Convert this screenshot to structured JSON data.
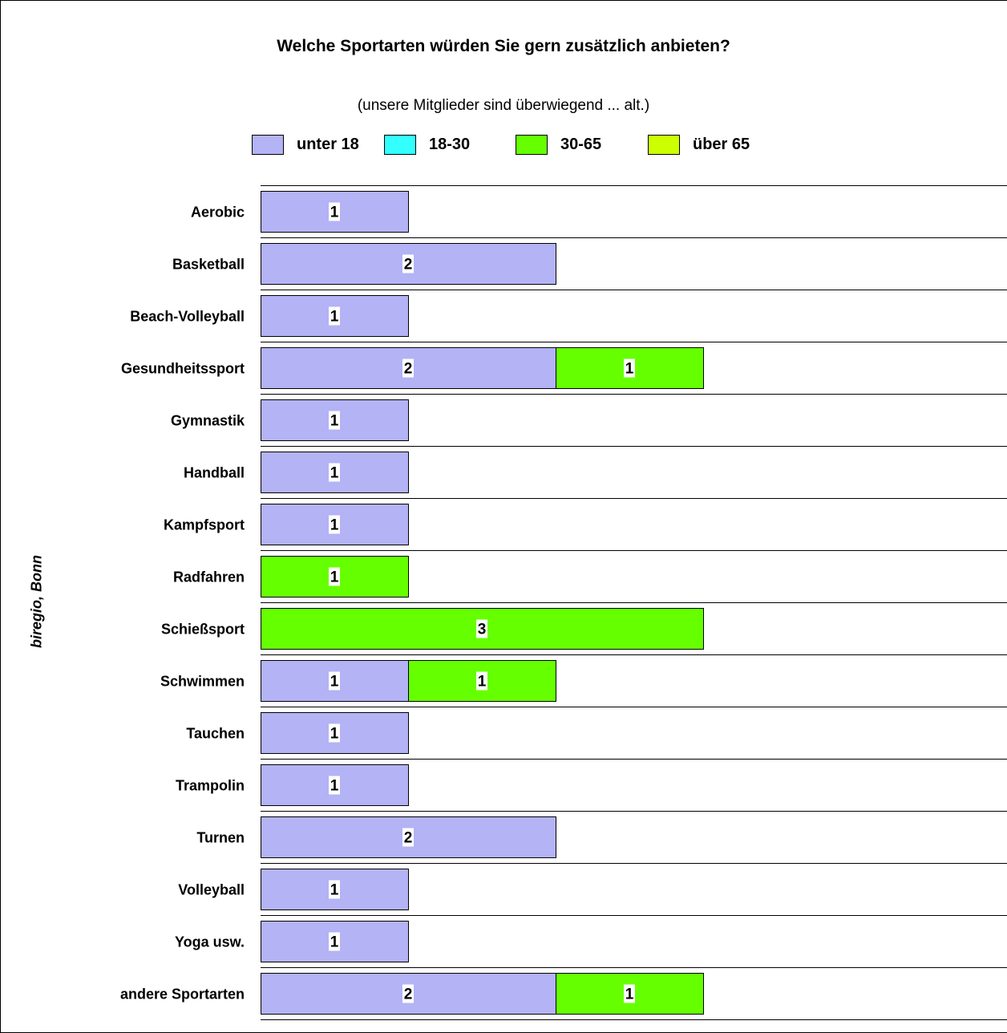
{
  "chart_data": {
    "type": "bar",
    "orientation": "horizontal",
    "stacked": true,
    "title": "Welche Sportarten würden Sie gern zusätzlich anbieten?",
    "subtitle": "(unsere Mitglieder sind überwiegend ... alt.)",
    "categories": [
      "Aerobic",
      "Basketball",
      "Beach-Volleyball",
      "Gesundheitssport",
      "Gymnastik",
      "Handball",
      "Kampfsport",
      "Radfahren",
      "Schießsport",
      "Schwimmen",
      "Tauchen",
      "Trampolin",
      "Turnen",
      "Volleyball",
      "Yoga usw.",
      "andere Sportarten"
    ],
    "series": [
      {
        "name": "unter 18",
        "color": "#b3b3f5",
        "values": [
          1,
          2,
          1,
          2,
          1,
          1,
          1,
          0,
          0,
          1,
          1,
          1,
          2,
          1,
          1,
          2
        ]
      },
      {
        "name": "18-30",
        "color": "#33ffff",
        "values": [
          0,
          0,
          0,
          0,
          0,
          0,
          0,
          0,
          0,
          0,
          0,
          0,
          0,
          0,
          0,
          0
        ]
      },
      {
        "name": "30-65",
        "color": "#66ff00",
        "values": [
          0,
          0,
          0,
          1,
          0,
          0,
          0,
          1,
          3,
          1,
          0,
          0,
          0,
          0,
          0,
          1
        ]
      },
      {
        "name": "über 65",
        "color": "#ccff00",
        "values": [
          0,
          0,
          0,
          0,
          0,
          0,
          0,
          0,
          0,
          0,
          0,
          0,
          0,
          0,
          0,
          0
        ]
      }
    ],
    "data_labels": true,
    "legend_position": "top",
    "grid": "horizontal separators"
  },
  "watermark": "biregio, Bonn"
}
